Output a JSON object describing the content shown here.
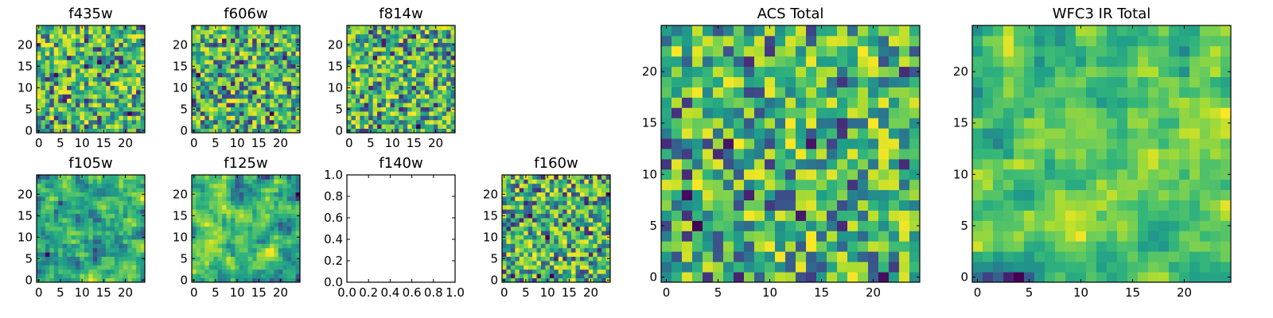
{
  "chart_data": [
    {
      "type": "heatmap",
      "title": "f435w",
      "grid_size": [
        25,
        25
      ],
      "origin": "lower",
      "colormap": "viridis",
      "seed": 11,
      "smoothness": 0,
      "xticks": [
        0,
        5,
        10,
        15,
        20
      ],
      "yticks": [
        0,
        5,
        10,
        15,
        20
      ]
    },
    {
      "type": "heatmap",
      "title": "f606w",
      "grid_size": [
        25,
        25
      ],
      "origin": "lower",
      "colormap": "viridis",
      "seed": 23,
      "smoothness": 0,
      "xticks": [
        0,
        5,
        10,
        15,
        20
      ],
      "yticks": [
        0,
        5,
        10,
        15,
        20
      ]
    },
    {
      "type": "heatmap",
      "title": "f814w",
      "grid_size": [
        25,
        25
      ],
      "origin": "lower",
      "colormap": "viridis",
      "seed": 37,
      "smoothness": 0,
      "xticks": [
        0,
        5,
        10,
        15,
        20
      ],
      "yticks": [
        0,
        5,
        10,
        15,
        20
      ]
    },
    {
      "type": "heatmap",
      "title": "f105w",
      "grid_size": [
        25,
        25
      ],
      "origin": "lower",
      "colormap": "viridis",
      "seed": 41,
      "smoothness": 1,
      "xticks": [
        0,
        5,
        10,
        15,
        20
      ],
      "yticks": [
        0,
        5,
        10,
        15,
        20
      ]
    },
    {
      "type": "heatmap",
      "title": "f125w",
      "grid_size": [
        25,
        25
      ],
      "origin": "lower",
      "colormap": "viridis",
      "seed": 53,
      "smoothness": 1,
      "xticks": [
        0,
        5,
        10,
        15,
        20
      ],
      "yticks": [
        0,
        5,
        10,
        15,
        20
      ]
    },
    {
      "type": "empty",
      "title": "f140w",
      "xlim": [
        0,
        1
      ],
      "ylim": [
        0,
        1
      ],
      "xticks": [
        "0.0",
        "0.2",
        "0.4",
        "0.6",
        "0.8",
        "1.0"
      ],
      "yticks": [
        "0.0",
        "0.2",
        "0.4",
        "0.6",
        "0.8",
        "1.0"
      ]
    },
    {
      "type": "heatmap",
      "title": "f160w",
      "grid_size": [
        25,
        25
      ],
      "origin": "lower",
      "colormap": "viridis",
      "seed": 67,
      "smoothness": 0,
      "xticks": [
        0,
        5,
        10,
        15,
        20
      ],
      "yticks": [
        0,
        5,
        10,
        15,
        20
      ]
    },
    {
      "type": "heatmap",
      "title": "ACS Total",
      "grid_size": [
        25,
        25
      ],
      "origin": "lower",
      "colormap": "viridis",
      "seed": 79,
      "smoothness": 0,
      "xticks": [
        0,
        5,
        10,
        15,
        20
      ],
      "yticks": [
        0,
        5,
        10,
        15,
        20
      ]
    },
    {
      "type": "heatmap",
      "title": "WFC3 IR Total",
      "grid_size": [
        25,
        25
      ],
      "origin": "lower",
      "colormap": "viridis",
      "seed": 97,
      "smoothness": 1,
      "xticks": [
        0,
        5,
        10,
        15,
        20
      ],
      "yticks": [
        0,
        5,
        10,
        15,
        20
      ]
    }
  ]
}
